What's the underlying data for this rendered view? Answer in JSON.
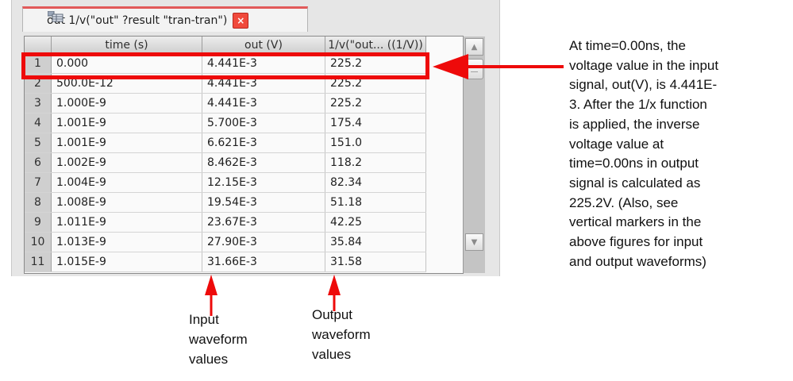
{
  "tab": {
    "title": "out 1/v(\"out\" ?result \"tran-tran\")",
    "icon": "table-window-icon",
    "close_glyph": "×"
  },
  "table": {
    "columns": [
      "time (s)",
      "out (V)",
      "1/v(\"out... ((1/V))"
    ],
    "rows": [
      {
        "num": "1",
        "time": "0.000",
        "out": "4.441E-3",
        "inv": "225.2"
      },
      {
        "num": "2",
        "time": "500.0E-12",
        "out": "4.441E-3",
        "inv": "225.2"
      },
      {
        "num": "3",
        "time": "1.000E-9",
        "out": "4.441E-3",
        "inv": "225.2"
      },
      {
        "num": "4",
        "time": "1.001E-9",
        "out": "5.700E-3",
        "inv": "175.4"
      },
      {
        "num": "5",
        "time": "1.001E-9",
        "out": "6.621E-3",
        "inv": "151.0"
      },
      {
        "num": "6",
        "time": "1.002E-9",
        "out": "8.462E-3",
        "inv": "118.2"
      },
      {
        "num": "7",
        "time": "1.004E-9",
        "out": "12.15E-3",
        "inv": "82.34"
      },
      {
        "num": "8",
        "time": "1.008E-9",
        "out": "19.54E-3",
        "inv": "51.18"
      },
      {
        "num": "9",
        "time": "1.011E-9",
        "out": "23.67E-3",
        "inv": "42.25"
      },
      {
        "num": "10",
        "time": "1.013E-9",
        "out": "27.90E-3",
        "inv": "35.84"
      },
      {
        "num": "11",
        "time": "1.015E-9",
        "out": "31.66E-3",
        "inv": "31.58"
      }
    ]
  },
  "scrollbar": {
    "up_glyph": "▲",
    "down_glyph": "▼"
  },
  "annotations": {
    "callout_lines": [
      "At time=0.00ns, the",
      "voltage value in the input",
      "signal, out(V), is 4.441E-",
      "3. After the 1/x function",
      "is applied, the inverse",
      "voltage value at",
      "time=0.00ns in output",
      "signal is calculated as",
      "225.2V. (Also, see",
      "vertical markers in the",
      "above figures for input",
      "and output waveforms)"
    ],
    "input_label_lines": [
      "Input",
      "waveform",
      "values"
    ],
    "output_label_lines": [
      "Output",
      "waveform",
      "values"
    ],
    "arrow_color": "#ee0a0a"
  }
}
